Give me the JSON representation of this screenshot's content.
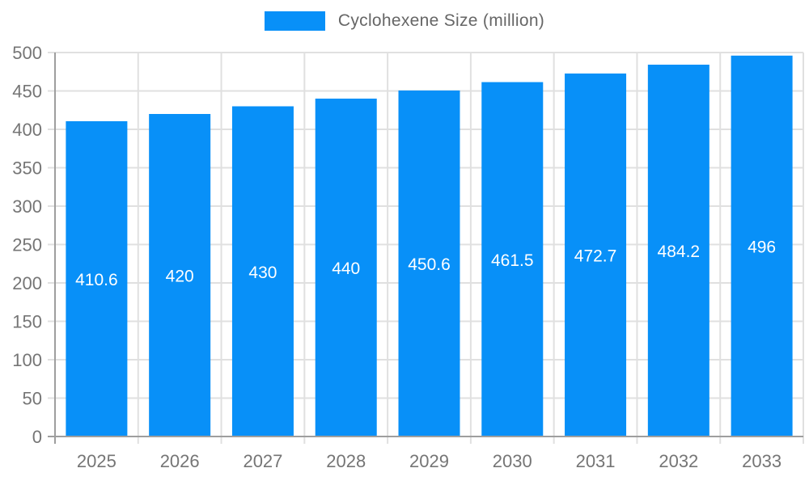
{
  "chart_data": {
    "type": "bar",
    "title": "",
    "legend": "Cyclohexene Size (million)",
    "legend_position": "top",
    "categories": [
      "2025",
      "2026",
      "2027",
      "2028",
      "2029",
      "2030",
      "2031",
      "2032",
      "2033"
    ],
    "values": [
      410.6,
      420,
      430,
      440,
      450.6,
      461.5,
      472.7,
      484.2,
      496
    ],
    "value_labels": [
      "410.6",
      "420",
      "430",
      "440",
      "450.6",
      "461.5",
      "472.7",
      "484.2",
      "496"
    ],
    "xlabel": "",
    "ylabel": "",
    "ylim": [
      0,
      500
    ],
    "ytick_step": 50,
    "ytick_labels": [
      "0",
      "50",
      "100",
      "150",
      "200",
      "250",
      "300",
      "350",
      "400",
      "450",
      "500"
    ],
    "grid": true,
    "colors": {
      "bar": "#0890F8",
      "value_label": "#ffffff",
      "grid_line": "#e0e0e0",
      "axis_line": "#9e9e9e",
      "tick_label": "#757575",
      "legend_text": "#666666",
      "background": "#ffffff"
    }
  }
}
